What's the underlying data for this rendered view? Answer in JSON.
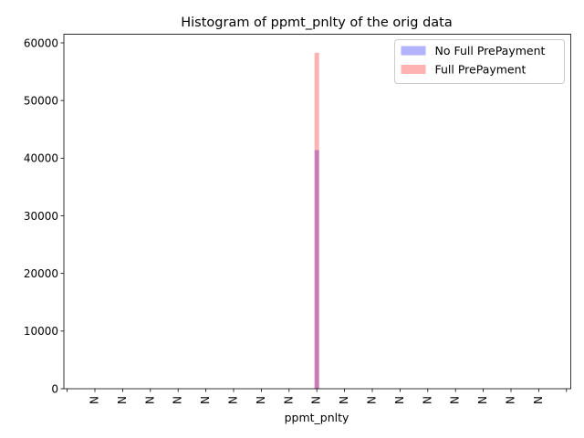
{
  "chart_data": {
    "type": "bar",
    "title": "Histogram of ppmt_pnlty of the orig data",
    "xlabel": "ppmt_pnlty",
    "ylabel": "",
    "ylim": [
      0,
      61500
    ],
    "yticks": [
      0,
      10000,
      20000,
      30000,
      40000,
      50000,
      60000
    ],
    "xtick_labels": [
      "N",
      "N",
      "N",
      "N",
      "N",
      "N",
      "N",
      "N",
      "N",
      "N",
      "N",
      "N",
      "N",
      "N",
      "N",
      "N",
      "N"
    ],
    "bar_category_index": 8,
    "legend_position": "top-right",
    "grid": false,
    "series": [
      {
        "name": "No Full PrePayment",
        "color": "#0000ff",
        "alpha": 0.3,
        "value": 41400
      },
      {
        "name": "Full PrePayment",
        "color": "#ff0000",
        "alpha": 0.3,
        "value": 58300
      }
    ]
  }
}
